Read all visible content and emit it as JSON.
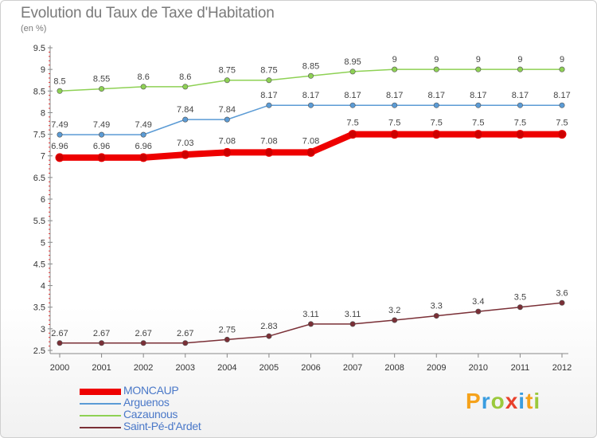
{
  "header": {
    "title": "Evolution du Taux de Taxe d'Habitation",
    "subtitle": "(en %)"
  },
  "logo": {
    "text": "Proxiti",
    "letters": [
      "P",
      "r",
      "o",
      "x",
      "i",
      "t",
      "i"
    ],
    "colors": [
      "#f5a21b",
      "#3a9de0",
      "#9bc93c",
      "#e8412c",
      "#3a9de0",
      "#f5a21b",
      "#9bc93c"
    ]
  },
  "chart_data": {
    "type": "line",
    "title": "Evolution du Taux de Taxe d'Habitation",
    "ylabel": "(en %)",
    "xlabel": "",
    "x": [
      "2000",
      "2001",
      "2002",
      "2003",
      "2004",
      "2005",
      "2006",
      "2007",
      "2008",
      "2009",
      "2010",
      "2011",
      "2012"
    ],
    "ylim": [
      2.5,
      9.5
    ],
    "yticks": [
      "2.5",
      "3",
      "3.5",
      "4",
      "4.5",
      "5",
      "5.5",
      "6",
      "6.5",
      "7",
      "7.5",
      "8",
      "8.5",
      "9",
      "9.5"
    ],
    "grid": false,
    "legend_position": "bottom-left",
    "series": [
      {
        "name": "MONCAUP",
        "color": "#ee0000",
        "width": 8,
        "values": [
          6.96,
          6.96,
          6.96,
          7.03,
          7.08,
          7.08,
          7.08,
          7.5,
          7.5,
          7.5,
          7.5,
          7.5,
          7.5
        ],
        "labels": [
          "6.96",
          "6.96",
          "6.96",
          "7.03",
          "7.08",
          "7.08",
          "7.08",
          "7.5",
          "7.5",
          "7.5",
          "7.5",
          "7.5",
          "7.5"
        ]
      },
      {
        "name": "Arguenos",
        "color": "#5b9bd5",
        "width": 1.5,
        "values": [
          7.49,
          7.49,
          7.49,
          7.84,
          7.84,
          8.17,
          8.17,
          8.17,
          8.17,
          8.17,
          8.17,
          8.17,
          8.17
        ],
        "labels": [
          "7.49",
          "7.49",
          "7.49",
          "7.84",
          "7.84",
          "8.17",
          "8.17",
          "8.17",
          "8.17",
          "8.17",
          "8.17",
          "8.17",
          "8.17"
        ]
      },
      {
        "name": "Cazaunous",
        "color": "#8ed154",
        "width": 1.5,
        "values": [
          8.5,
          8.55,
          8.6,
          8.6,
          8.75,
          8.75,
          8.85,
          8.95,
          9,
          9,
          9,
          9,
          9
        ],
        "labels": [
          "8.5",
          "8.55",
          "8.6",
          "8.6",
          "8.75",
          "8.75",
          "8.85",
          "8.95",
          "9",
          "9",
          "9",
          "9",
          "9"
        ]
      },
      {
        "name": "Saint-Pé-d'Ardet",
        "color": "#7a2f36",
        "width": 1.5,
        "values": [
          2.67,
          2.67,
          2.67,
          2.67,
          2.75,
          2.83,
          3.11,
          3.11,
          3.2,
          3.3,
          3.4,
          3.5,
          3.6
        ],
        "labels": [
          "2.67",
          "2.67",
          "2.67",
          "2.67",
          "2.75",
          "2.83",
          "3.11",
          "3.11",
          "3.2",
          "3.3",
          "3.4",
          "3.5",
          "3.6"
        ]
      }
    ]
  }
}
